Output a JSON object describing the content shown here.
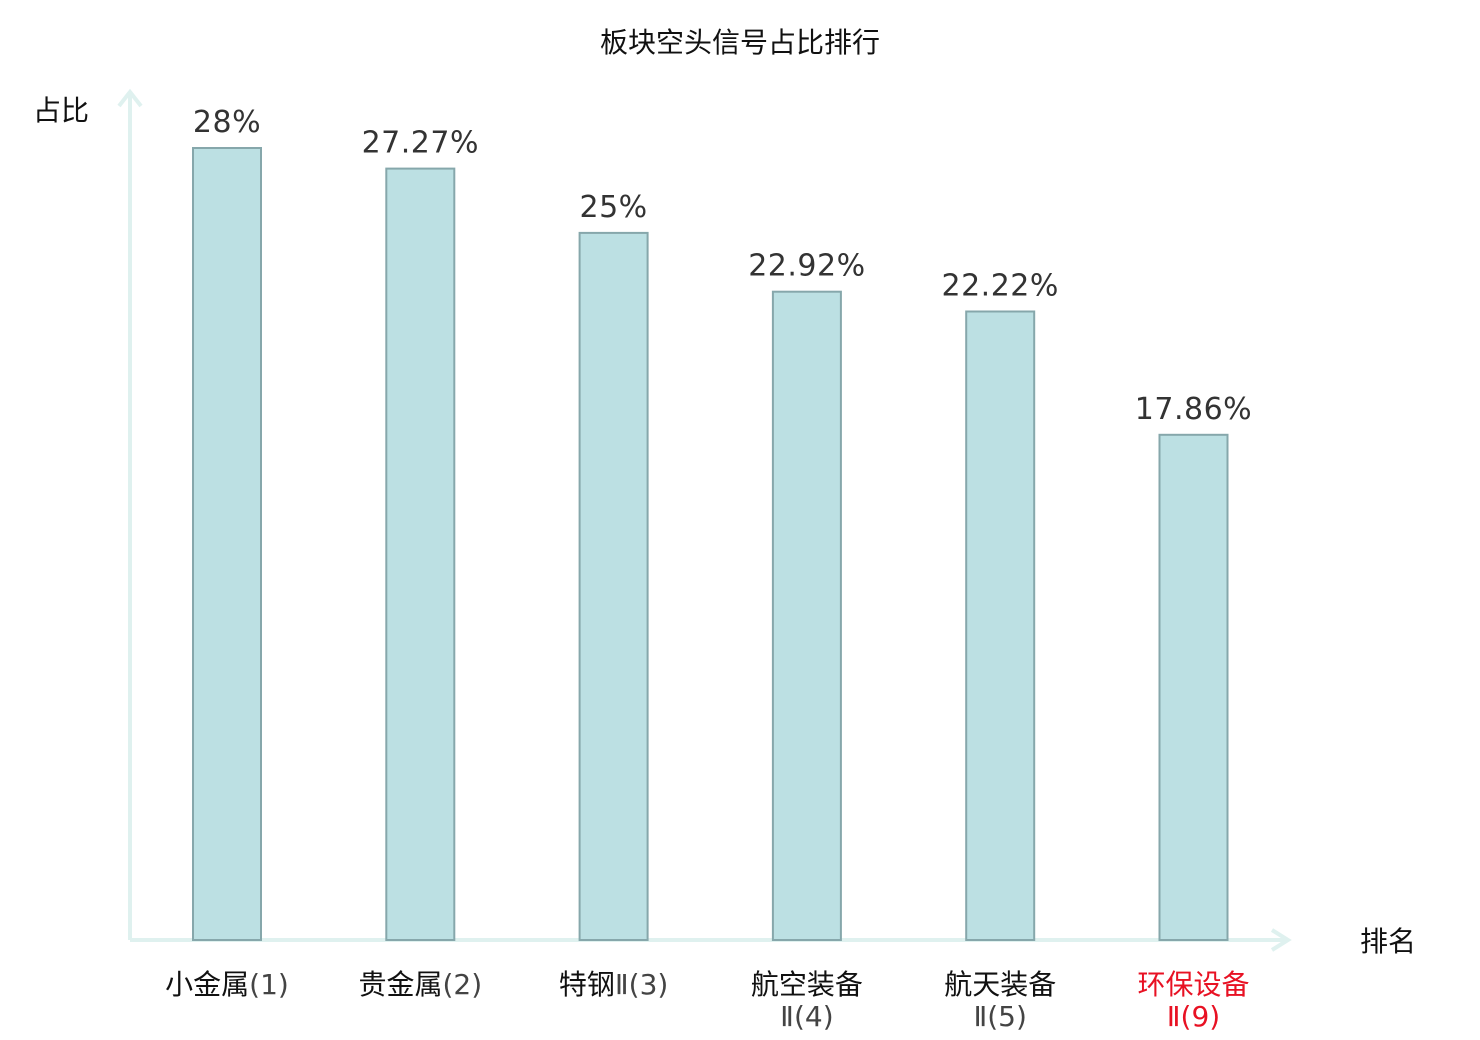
{
  "chart_data": {
    "type": "bar",
    "title": "板块空头信号占比排行",
    "ylabel": "占比",
    "xlabel": "排名",
    "ylim": [
      0,
      30
    ],
    "grid": false,
    "legend": "none",
    "value_format": "percent",
    "categories": [
      {
        "name": "小金属",
        "rank": "(1)",
        "lines": [
          "小金属",
          "(1)"
        ],
        "color": "#111111",
        "suffix_color": "#444444"
      },
      {
        "name": "贵金属",
        "rank": "(2)",
        "lines": [
          "贵金属",
          "(2)"
        ],
        "color": "#111111",
        "suffix_color": "#444444"
      },
      {
        "name": "特钢Ⅱ",
        "rank": "(3)",
        "lines": [
          "特钢",
          "Ⅱ(3)"
        ],
        "color": "#111111",
        "suffix_color": "#444444"
      },
      {
        "name": "航空装备Ⅱ",
        "rank": "(4)",
        "lines": [
          "航空装备",
          "Ⅱ(4)"
        ],
        "color": "#111111",
        "suffix_color": "#444444"
      },
      {
        "name": "航天装备Ⅱ",
        "rank": "(5)",
        "lines": [
          "航天装备",
          "Ⅱ(5)"
        ],
        "color": "#111111",
        "suffix_color": "#444444"
      },
      {
        "name": "环保设备Ⅱ",
        "rank": "(9)",
        "lines": [
          "环保设备",
          "Ⅱ(9)"
        ],
        "color": "#e81123",
        "suffix_color": "#e81123"
      }
    ],
    "values": [
      28,
      27.27,
      25,
      22.92,
      22.22,
      17.86
    ],
    "value_labels": [
      "28%",
      "27.27%",
      "25%",
      "22.92%",
      "22.22%",
      "17.86%"
    ],
    "colors": {
      "bar_fill": "#bce0e3",
      "bar_stroke": "#86a7ab",
      "axis": "#dff1ef",
      "highlight": "#e81123"
    }
  }
}
